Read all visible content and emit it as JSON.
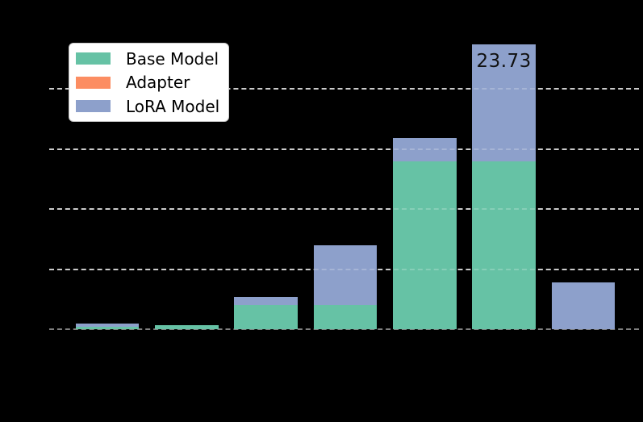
{
  "figure": {
    "background_color": "#000000",
    "bar_value_label": "23.73"
  },
  "legend": {
    "position": "upper left",
    "items": [
      {
        "label": "Base Model",
        "color": "#66c2a5"
      },
      {
        "label": "Adapter",
        "color": "#fc8d62"
      },
      {
        "label": "LoRA Model",
        "color": "#8da0cb"
      }
    ]
  },
  "chart_data": {
    "type": "bar",
    "stacked": true,
    "orientation": "vertical",
    "num_bars": 7,
    "x_tick_labels_visible": false,
    "y_tick_labels_visible": false,
    "title_visible": false,
    "series": [
      {
        "name": "Base Model",
        "color": "#66c2a5",
        "values": [
          0.2,
          0.35,
          2.0,
          2.0,
          14.0,
          14.0,
          0
        ]
      },
      {
        "name": "Adapter",
        "color": "#fc8d62",
        "values": [
          0,
          0,
          0,
          0,
          0,
          0,
          0
        ]
      },
      {
        "name": "LoRA Model",
        "color": "#8da0cb",
        "values": [
          0.27,
          0,
          0.7,
          5.0,
          1.9,
          9.73,
          3.92
        ]
      }
    ],
    "stack_totals": [
      0.47,
      0.35,
      2.7,
      7.0,
      15.9,
      23.73,
      3.92
    ],
    "annotations": [
      {
        "bar_index": 5,
        "text": "23.73"
      }
    ],
    "ylim": [
      0,
      25
    ],
    "yticks": [
      0,
      5,
      10,
      15,
      20
    ],
    "grid": {
      "style": "dashed",
      "horizontal_only": true,
      "line_color": "#c9c9c9",
      "zero_line_color": "#808080"
    },
    "legend_position": "upper left",
    "plot_background": "transparent-on-black"
  }
}
